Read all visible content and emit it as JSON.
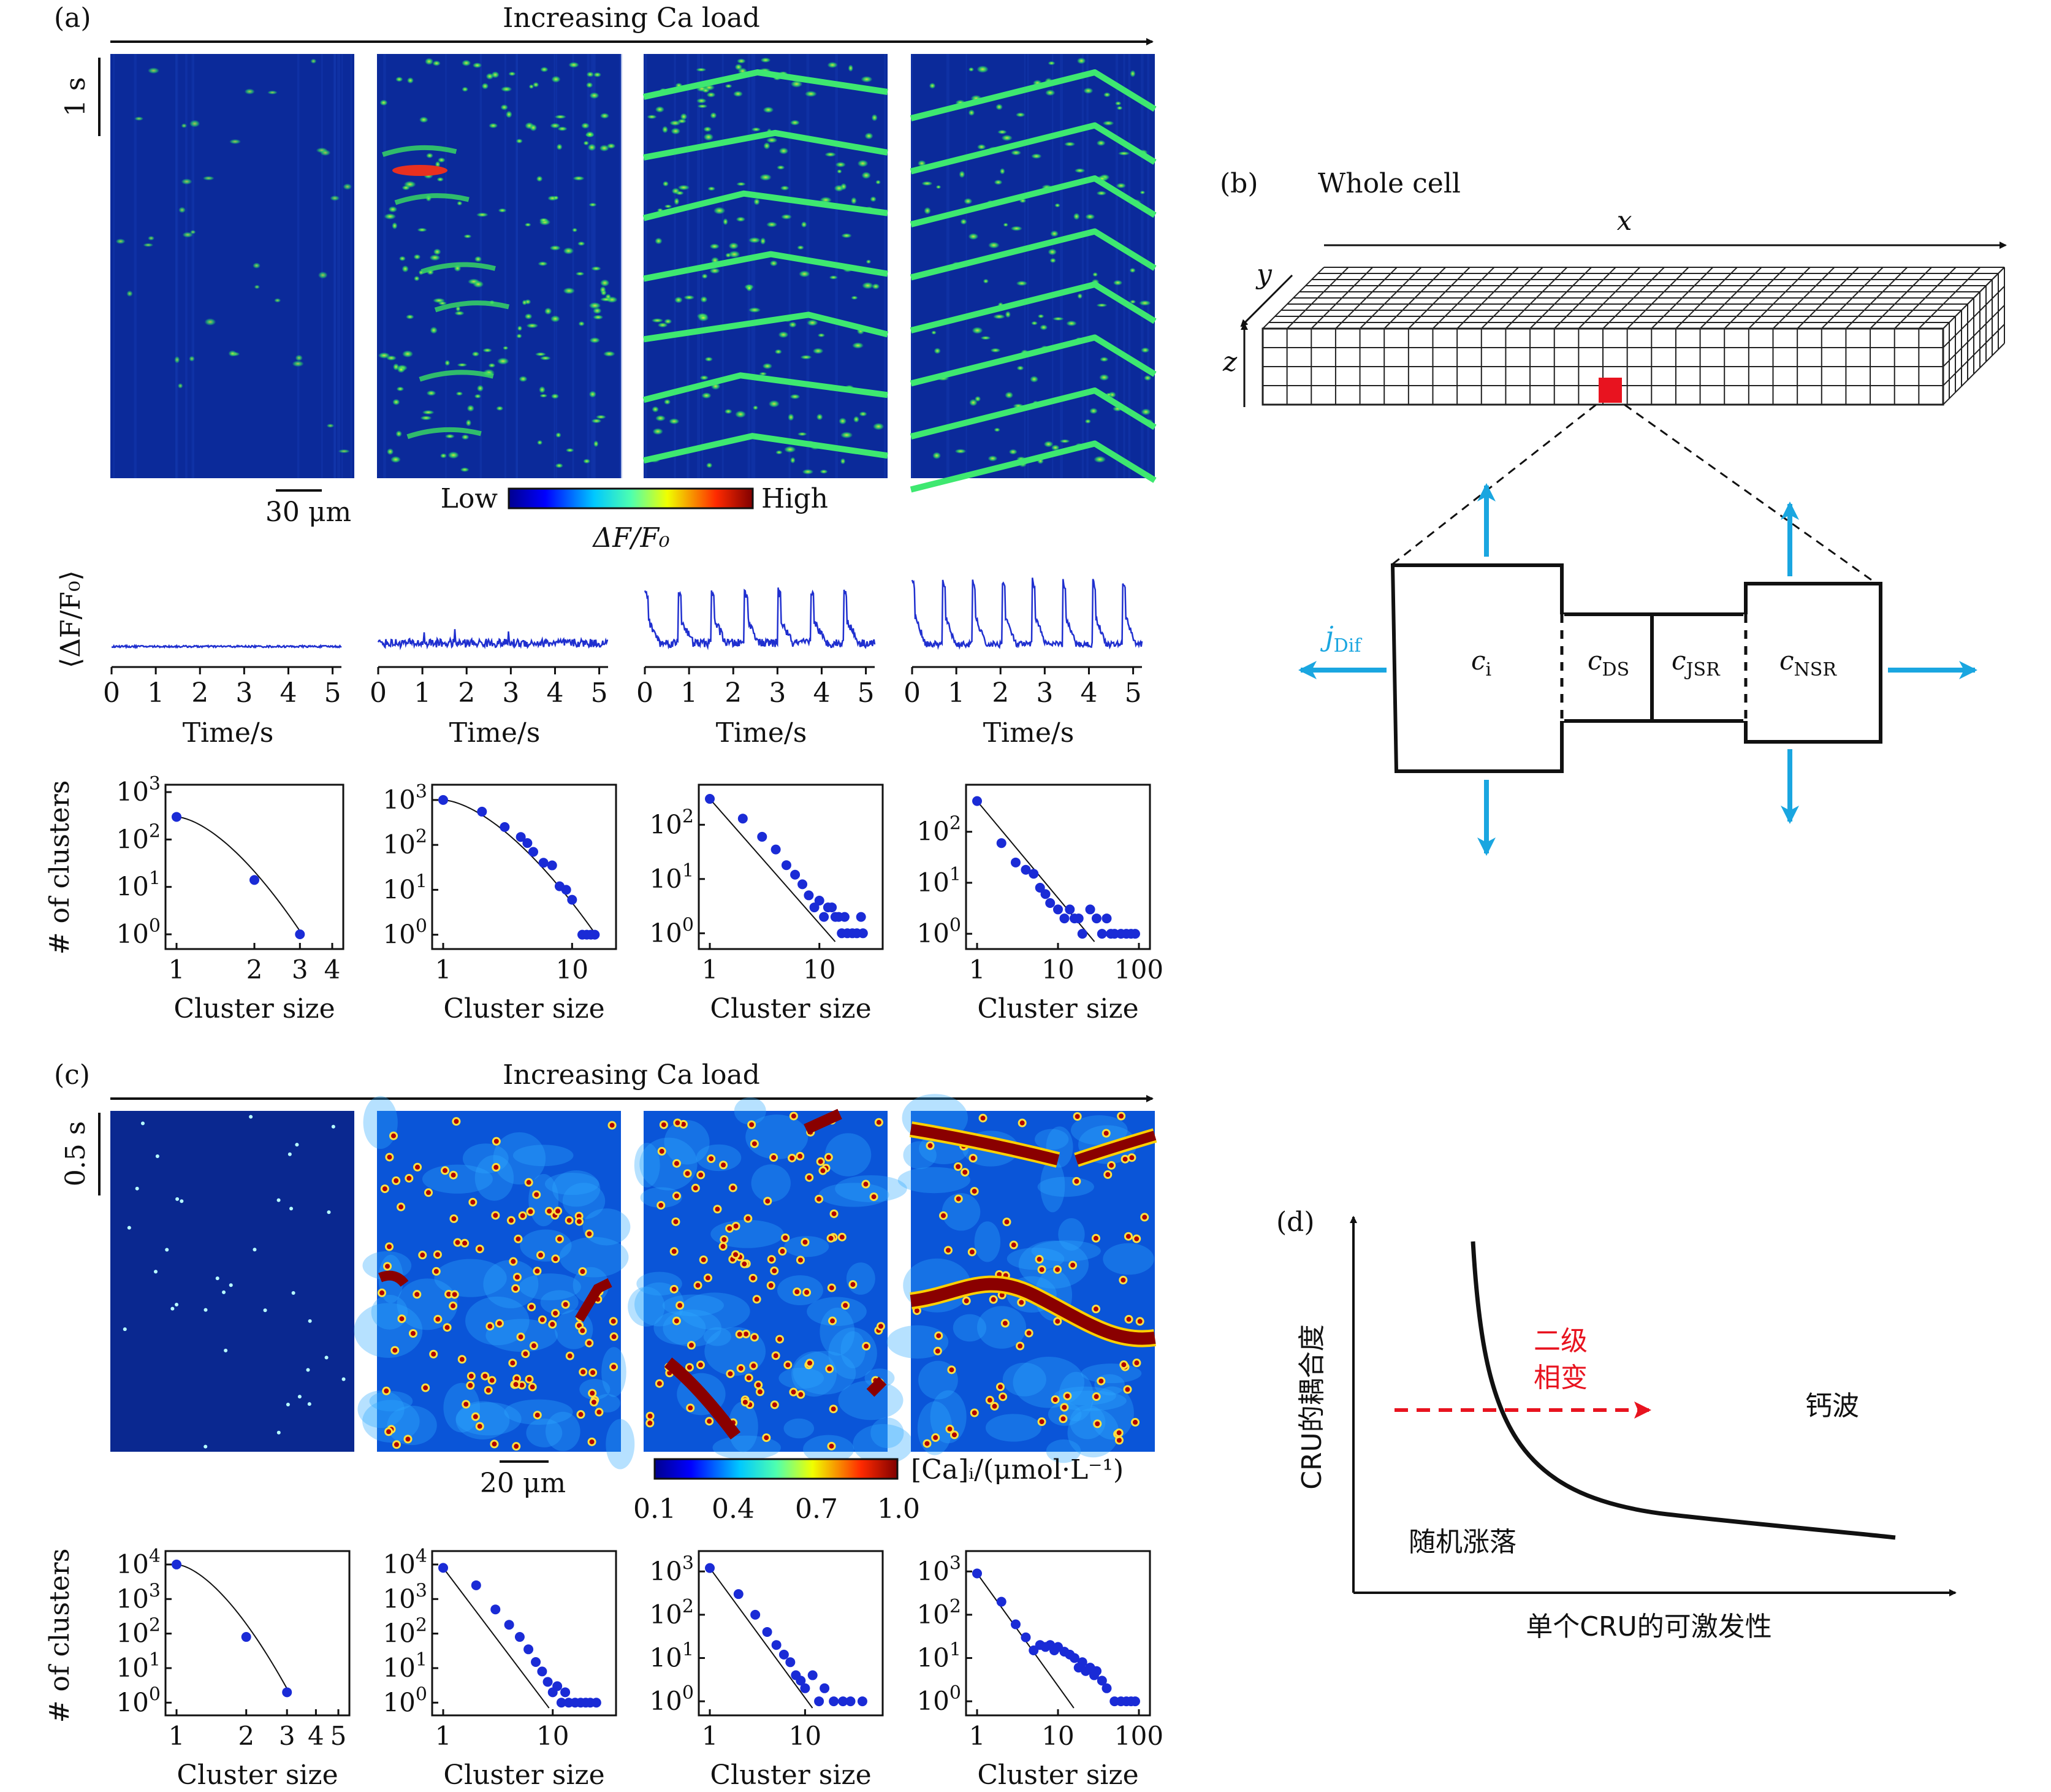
{
  "panel_a": {
    "label": "(a)",
    "arrow_label": "Increasing Ca load",
    "time_scale": "1 s",
    "space_scale": "30 μm",
    "colorbar": {
      "low": "Low",
      "high": "High",
      "title": "ΔF/F₀"
    },
    "trace_ylabel": "⟨ΔF/F₀⟩",
    "trace_xlabel": "Time/s",
    "trace_ticks": [
      "0",
      "1",
      "2",
      "3",
      "4",
      "5"
    ],
    "hist_ylabel": "# of clusters",
    "hist_xlabel": "Cluster size",
    "colors": {
      "linescan_bg": "#0a2a9e",
      "trace": "#1f2fcf",
      "dots": "#1a2bd6"
    }
  },
  "panel_b": {
    "label": "(b)",
    "title": "Whole cell",
    "axes": {
      "x": "x",
      "y": "y",
      "z": "z"
    },
    "compartments": {
      "ci": "c",
      "ci_sub": "i",
      "cds": "c",
      "cds_sub": "DS",
      "cjsr": "c",
      "cjsr_sub": "JSR",
      "cnsr": "c",
      "cnsr_sub": "NSR"
    },
    "flux": "j",
    "flux_sub": "Dif",
    "colors": {
      "arrow": "#1aa6e0",
      "highlight": "#e8131f"
    }
  },
  "panel_c": {
    "label": "(c)",
    "arrow_label": "Increasing Ca load",
    "time_scale": "0.5 s",
    "space_scale": "20 μm",
    "colorbar": {
      "title": "[Ca]ᵢ/(μmol·L⁻¹)",
      "ticks": [
        "0.1",
        "0.4",
        "0.7",
        "1.0"
      ]
    },
    "hist_ylabel": "# of clusters",
    "hist_xlabel": "Cluster size"
  },
  "panel_d": {
    "label": "(d)",
    "ylabel": "CRU的耦合度",
    "xlabel": "单个CRU的可激发性",
    "transition": "二级",
    "transition2": "相变",
    "region_wave": "钙波",
    "region_random": "随机涨落"
  },
  "chart_data": [
    {
      "type": "scatter",
      "panel": "a-1",
      "title": "",
      "xlabel": "Cluster size",
      "ylabel": "# of clusters",
      "xscale": "log",
      "yscale": "log",
      "xlim": [
        1,
        4
      ],
      "ylim": [
        0.7,
        1000
      ],
      "xticks": [
        "1",
        "2",
        "3",
        "4"
      ],
      "x": [
        1,
        2,
        3
      ],
      "y": [
        300,
        14,
        1
      ]
    },
    {
      "type": "scatter",
      "panel": "a-2",
      "xlabel": "Cluster size",
      "ylabel": "# of clusters",
      "xscale": "log",
      "yscale": "log",
      "xlim": [
        1,
        18
      ],
      "ylim": [
        0.7,
        1500
      ],
      "xticks": [
        "1",
        "10"
      ],
      "x": [
        1,
        2,
        3,
        4,
        4.5,
        5,
        6,
        7,
        8,
        9,
        10,
        12,
        13,
        14,
        15
      ],
      "y": [
        1000,
        550,
        250,
        150,
        110,
        70,
        40,
        35,
        12,
        10,
        6,
        1,
        1,
        1,
        1
      ]
    },
    {
      "type": "scatter",
      "panel": "a-3",
      "xlabel": "Cluster size",
      "ylabel": "# of clusters",
      "xscale": "log",
      "yscale": "log",
      "xlim": [
        1,
        30
      ],
      "ylim": [
        0.7,
        400
      ],
      "xticks": [
        "1",
        "10"
      ],
      "x": [
        1,
        2,
        3,
        4,
        5,
        6,
        7,
        8,
        9,
        10,
        11,
        12,
        13,
        14,
        15,
        16,
        17,
        18,
        20,
        22,
        24,
        25
      ],
      "y": [
        300,
        130,
        60,
        35,
        18,
        12,
        8,
        5,
        3,
        4,
        2,
        3,
        3,
        2,
        2,
        1,
        2,
        1,
        1,
        1,
        2,
        1
      ]
    },
    {
      "type": "scatter",
      "panel": "a-4",
      "xlabel": "Cluster size",
      "ylabel": "# of clusters",
      "xscale": "log",
      "yscale": "log",
      "xlim": [
        1,
        100
      ],
      "ylim": [
        0.7,
        600
      ],
      "xticks": [
        "1",
        "10",
        "100"
      ],
      "x": [
        1,
        2,
        3,
        4,
        5,
        6,
        7,
        8,
        10,
        12,
        14,
        16,
        18,
        20,
        25,
        30,
        35,
        40,
        45,
        50,
        60,
        70,
        80,
        90
      ],
      "y": [
        400,
        60,
        25,
        18,
        15,
        8,
        6,
        4,
        3,
        2,
        3,
        2,
        2,
        1,
        3,
        2,
        1,
        2,
        1,
        1,
        1,
        1,
        1,
        1
      ]
    },
    {
      "type": "scatter",
      "panel": "c-1",
      "xlabel": "Cluster size",
      "ylabel": "# of clusters",
      "xscale": "log",
      "yscale": "log",
      "xlim": [
        1,
        5
      ],
      "ylim": [
        0.7,
        15000
      ],
      "xticks": [
        "1",
        "2",
        "3",
        "4",
        "5"
      ],
      "x": [
        1,
        2,
        3
      ],
      "y": [
        10000,
        80,
        2
      ]
    },
    {
      "type": "scatter",
      "panel": "c-2",
      "xlabel": "Cluster size",
      "ylabel": "# of clusters",
      "xscale": "log",
      "yscale": "log",
      "xlim": [
        1,
        30
      ],
      "ylim": [
        0.7,
        15000
      ],
      "xticks": [
        "1",
        "10"
      ],
      "x": [
        1,
        2,
        3,
        4,
        5,
        6,
        7,
        8,
        9,
        10,
        11,
        12,
        13,
        14,
        16,
        18,
        20,
        22,
        25
      ],
      "y": [
        8000,
        2500,
        500,
        180,
        80,
        35,
        15,
        8,
        4,
        2,
        3,
        1,
        2,
        1,
        1,
        1,
        1,
        1,
        1
      ]
    },
    {
      "type": "scatter",
      "panel": "c-3",
      "xlabel": "Cluster size",
      "ylabel": "# of clusters",
      "xscale": "log",
      "yscale": "log",
      "xlim": [
        1,
        50
      ],
      "ylim": [
        0.7,
        2000
      ],
      "xticks": [
        "1",
        "10"
      ],
      "x": [
        1,
        2,
        3,
        4,
        5,
        6,
        7,
        8,
        9,
        10,
        12,
        14,
        16,
        20,
        25,
        30,
        40
      ],
      "y": [
        1200,
        300,
        100,
        40,
        20,
        12,
        8,
        4,
        3,
        2,
        4,
        1,
        2,
        1,
        1,
        1,
        1
      ]
    },
    {
      "type": "scatter",
      "panel": "c-4",
      "xlabel": "Cluster size",
      "ylabel": "# of clusters",
      "xscale": "log",
      "yscale": "log",
      "xlim": [
        1,
        100
      ],
      "ylim": [
        0.7,
        2000
      ],
      "xticks": [
        "1",
        "10",
        "100"
      ],
      "x": [
        1,
        2,
        3,
        4,
        5,
        6,
        7,
        8,
        9,
        10,
        12,
        14,
        16,
        18,
        20,
        22,
        25,
        28,
        30,
        35,
        40,
        50,
        60,
        70,
        80,
        90
      ],
      "y": [
        900,
        200,
        60,
        30,
        15,
        20,
        18,
        20,
        15,
        18,
        14,
        12,
        10,
        6,
        8,
        5,
        6,
        4,
        5,
        3,
        2,
        1,
        1,
        1,
        1,
        1
      ]
    }
  ]
}
